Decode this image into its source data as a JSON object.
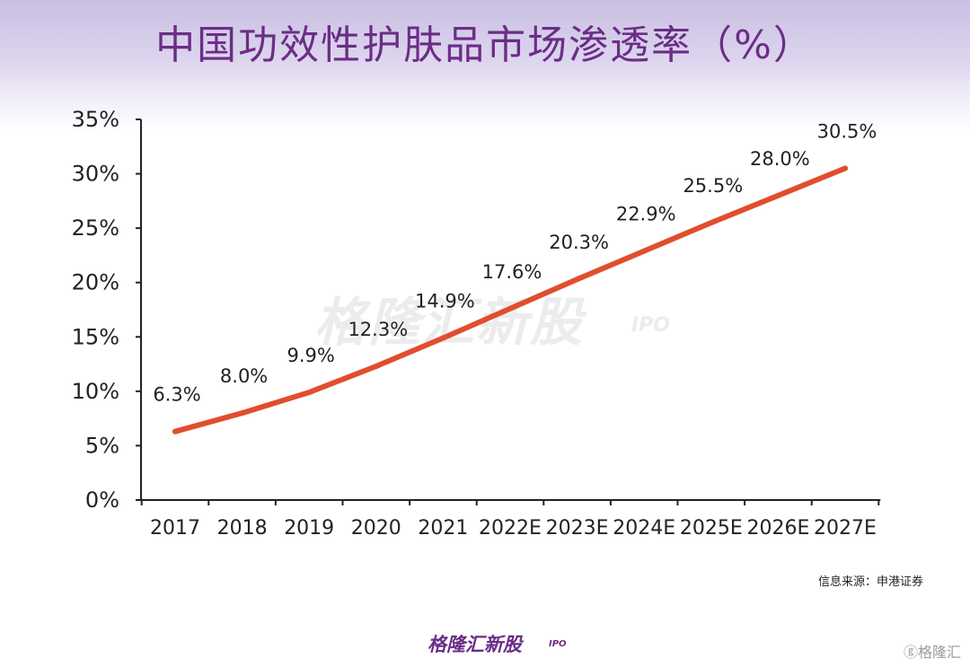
{
  "chart_data": {
    "type": "line",
    "title": "中国功效性护肤品市场渗透率（%）",
    "categories": [
      "2017",
      "2018",
      "2019",
      "2020",
      "2021",
      "2022E",
      "2023E",
      "2024E",
      "2025E",
      "2026E",
      "2027E"
    ],
    "series": [
      {
        "values": [
          6.3,
          8.0,
          9.9,
          12.3,
          14.9,
          17.6,
          20.3,
          22.9,
          25.5,
          28.0,
          30.5
        ],
        "color": "#e04e2e"
      }
    ],
    "data_labels": [
      "6.3%",
      "8.0%",
      "9.9%",
      "12.3%",
      "14.9%",
      "17.6%",
      "20.3%",
      "22.9%",
      "25.5%",
      "28.0%",
      "30.5%"
    ],
    "y_ticks": [
      "0%",
      "5%",
      "10%",
      "15%",
      "20%",
      "25%",
      "30%",
      "35%"
    ],
    "ylim": [
      0,
      35
    ],
    "grid": false,
    "legend": "none"
  },
  "source": "信息来源：申港证券",
  "watermark": {
    "text": "格隆汇新股",
    "ipo": "IPO"
  },
  "footer": {
    "logo": "格隆汇新股",
    "ipo": "IPO",
    "corner": "ⓖ格隆汇"
  },
  "colors": {
    "line": "#e04e2e",
    "title": "#6b2d86",
    "axis": "#222222"
  }
}
